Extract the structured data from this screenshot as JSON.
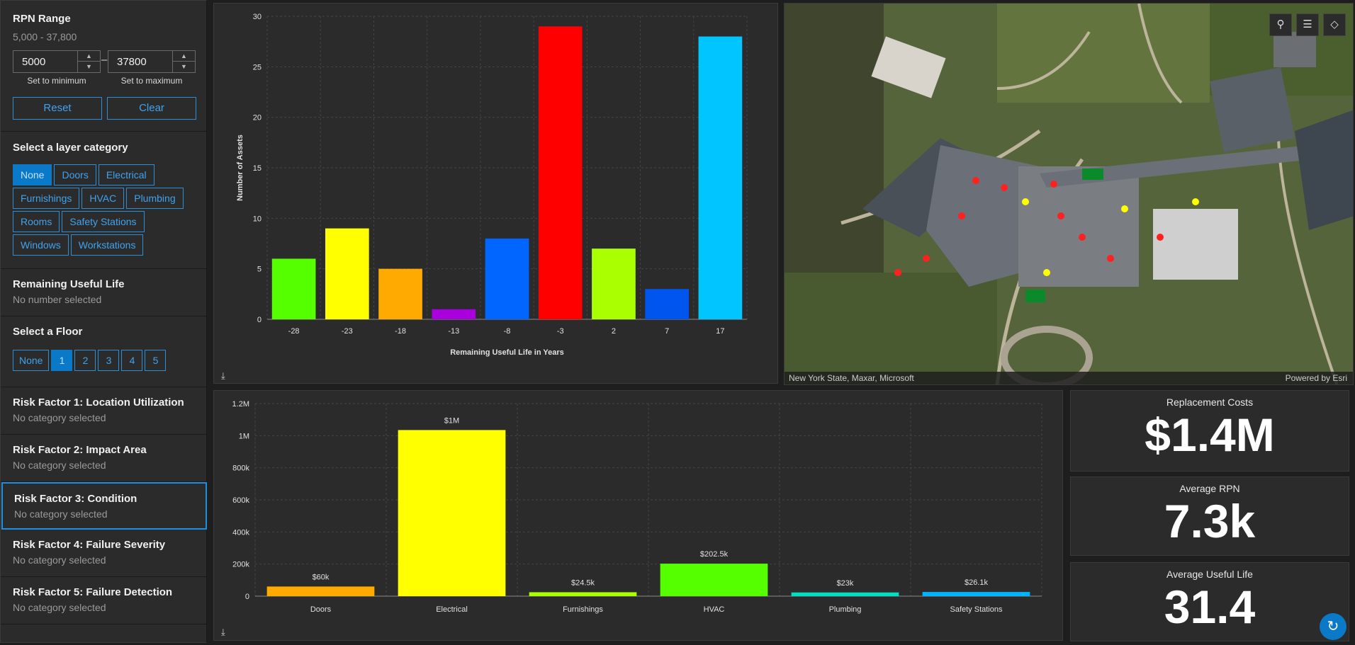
{
  "rpn": {
    "title": "RPN Range",
    "range_text": "5,000 - 37,800",
    "min_value": "5000",
    "max_value": "37800",
    "dash": "–",
    "min_caption": "Set to minimum",
    "max_caption": "Set to maximum",
    "reset_label": "Reset",
    "clear_label": "Clear"
  },
  "layer_category": {
    "title": "Select a layer category",
    "options": [
      "None",
      "Doors",
      "Electrical",
      "Furnishings",
      "HVAC",
      "Plumbing",
      "Rooms",
      "Safety Stations",
      "Windows",
      "Workstations"
    ],
    "selected": "None"
  },
  "remaining_life": {
    "title": "Remaining Useful Life",
    "status": "No number selected"
  },
  "floor": {
    "title": "Select a Floor",
    "options": [
      "None",
      "1",
      "2",
      "3",
      "4",
      "5"
    ],
    "selected": "1"
  },
  "risk_factors": [
    {
      "title": "Risk Factor 1: Location Utilization",
      "status": "No category selected"
    },
    {
      "title": "Risk Factor 2: Impact Area",
      "status": "No category selected"
    },
    {
      "title": "Risk Factor 3: Condition",
      "status": "No category selected"
    },
    {
      "title": "Risk Factor 4: Failure Severity",
      "status": "No category selected"
    },
    {
      "title": "Risk Factor 5: Failure Detection",
      "status": "No category selected"
    }
  ],
  "chart_data": [
    {
      "type": "bar",
      "xlabel": "Remaining Useful Life in Years",
      "ylabel": "Number of Assets",
      "ylim": [
        0,
        30
      ],
      "yticks": [
        0,
        5,
        10,
        15,
        20,
        25,
        30
      ],
      "categories": [
        "-28",
        "-23",
        "-18",
        "-13",
        "-8",
        "-3",
        "2",
        "7",
        "17"
      ],
      "values": [
        6,
        9,
        5,
        1,
        8,
        29,
        7,
        3,
        28
      ],
      "colors": [
        "#55ff00",
        "#ffff00",
        "#ffaa00",
        "#aa00dd",
        "#0066ff",
        "#ff0000",
        "#aaff00",
        "#0055ee",
        "#00c5ff"
      ],
      "grid": true
    },
    {
      "type": "bar",
      "ylim": [
        0,
        1200000
      ],
      "yticks": [
        0,
        200000,
        400000,
        600000,
        800000,
        1000000,
        1200000
      ],
      "ytick_labels": [
        "0",
        "200k",
        "400k",
        "600k",
        "800k",
        "1M",
        "1.2M"
      ],
      "categories": [
        "Doors",
        "Electrical",
        "Furnishings",
        "HVAC",
        "Plumbing",
        "Safety Stations"
      ],
      "values": [
        60000,
        1035000,
        24500,
        202500,
        23000,
        26100
      ],
      "data_labels": [
        "$60k",
        "$1M",
        "$24.5k",
        "$202.5k",
        "$23k",
        "$26.1k"
      ],
      "colors": [
        "#ffaa00",
        "#ffff00",
        "#aaff00",
        "#55ff00",
        "#00e0c0",
        "#00b4ff"
      ],
      "grid": true
    }
  ],
  "map": {
    "attribution_left": "New York State, Maxar, Microsoft",
    "attribution_right": "Powered by Esri",
    "tools": [
      "search-icon",
      "legend-icon",
      "layers-icon"
    ]
  },
  "stats": [
    {
      "label": "Replacement Costs",
      "value": "$1.4M"
    },
    {
      "label": "Average RPN",
      "value": "7.3k"
    },
    {
      "label": "Average Useful Life",
      "value": "31.4"
    }
  ]
}
